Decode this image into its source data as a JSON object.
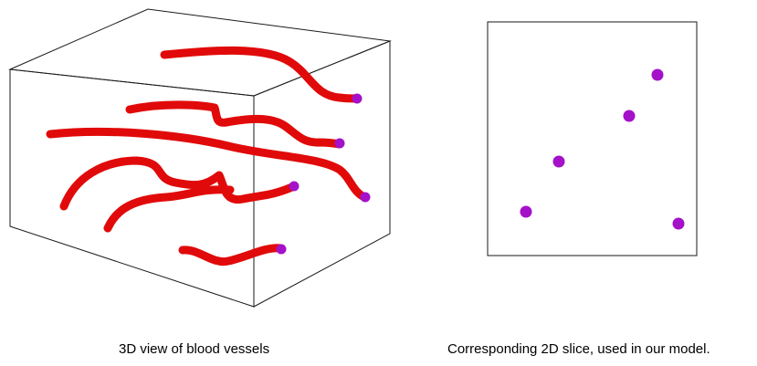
{
  "captions": {
    "left": "3D view of blood vessels",
    "right": "Corresponding 2D slice, used in our model."
  },
  "colors": {
    "vessel": "#e10a0a",
    "vessel_end": "#a411c9",
    "outline": "#1a1a1a",
    "background": "#ffffff"
  }
}
